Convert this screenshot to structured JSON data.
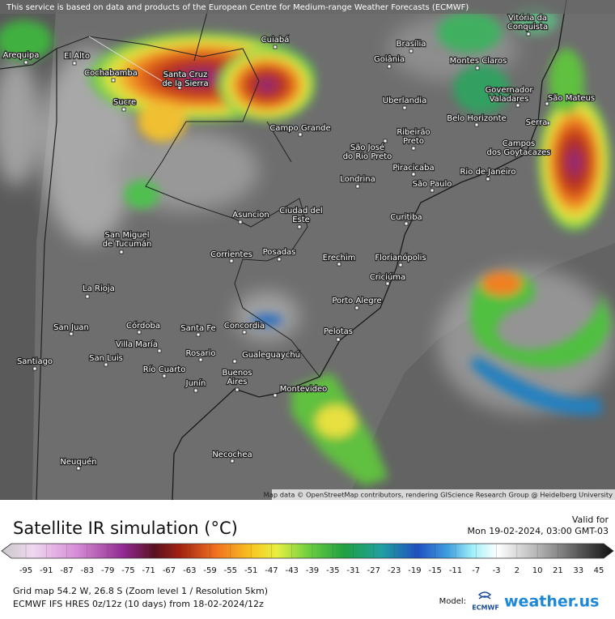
{
  "header": {
    "notice": "This service is based on data and products of the European Centre for Medium-range Weather Forecasts (ECMWF)"
  },
  "map": {
    "cities": [
      {
        "lines": [
          "Arequipa"
        ]
      },
      {
        "lines": [
          "El Alto"
        ]
      },
      {
        "lines": [
          "Cochabamba"
        ]
      },
      {
        "lines": [
          "Cuiabá"
        ]
      },
      {
        "lines": [
          "Brasília"
        ]
      },
      {
        "lines": [
          "Goiânia"
        ]
      },
      {
        "lines": [
          "Montes Claros"
        ]
      },
      {
        "lines": [
          "Vitória da",
          "Conquista"
        ]
      },
      {
        "lines": [
          "Santa Cruz",
          "de la Sierra"
        ]
      },
      {
        "lines": [
          "Sucre"
        ]
      },
      {
        "lines": [
          "Uberlandia"
        ]
      },
      {
        "lines": [
          "Governador",
          "Valadares"
        ]
      },
      {
        "lines": [
          "São Mateus"
        ]
      },
      {
        "lines": [
          "Belo Horizonte"
        ]
      },
      {
        "lines": [
          "Serra"
        ]
      },
      {
        "lines": [
          "Campo Grande"
        ]
      },
      {
        "lines": [
          "Ribeirão",
          "Preto"
        ]
      },
      {
        "lines": [
          "São José",
          "do Rio Preto"
        ]
      },
      {
        "lines": [
          "Campos",
          "dos Goytacazes"
        ]
      },
      {
        "lines": [
          "Piracicaba"
        ]
      },
      {
        "lines": [
          "Rio de Janeiro"
        ]
      },
      {
        "lines": [
          "Londrina"
        ]
      },
      {
        "lines": [
          "São Paulo"
        ]
      },
      {
        "lines": [
          "Ciudad del",
          "Este"
        ]
      },
      {
        "lines": [
          "Asuncion"
        ]
      },
      {
        "lines": [
          "Curitiba"
        ]
      },
      {
        "lines": [
          "San Miguel",
          "de Tucumán"
        ]
      },
      {
        "lines": [
          "Corrientes"
        ]
      },
      {
        "lines": [
          "Posadas"
        ]
      },
      {
        "lines": [
          "Erechim"
        ]
      },
      {
        "lines": [
          "Florianópolis"
        ]
      },
      {
        "lines": [
          "Criciúma"
        ]
      },
      {
        "lines": [
          "La Rioja"
        ]
      },
      {
        "lines": [
          "Porto Alegre"
        ]
      },
      {
        "lines": [
          "Córdoba"
        ]
      },
      {
        "lines": [
          "Concordia"
        ]
      },
      {
        "lines": [
          "San Juan"
        ]
      },
      {
        "lines": [
          "Santa Fe"
        ]
      },
      {
        "lines": [
          "Pelotas"
        ]
      },
      {
        "lines": [
          "Villa María"
        ]
      },
      {
        "lines": [
          "Rosario"
        ]
      },
      {
        "lines": [
          "Gualeguaychú"
        ]
      },
      {
        "lines": [
          "Santiago"
        ]
      },
      {
        "lines": [
          "San Luis"
        ]
      },
      {
        "lines": [
          "Río Cuarto"
        ]
      },
      {
        "lines": [
          "Buenos",
          "Aires"
        ]
      },
      {
        "lines": [
          "Montevideo"
        ]
      },
      {
        "lines": [
          "Junín"
        ]
      },
      {
        "lines": [
          "Necochea"
        ]
      },
      {
        "lines": [
          "Neuquén"
        ]
      }
    ],
    "attribution": "Map data © OpenStreetMap contributors, rendering GIScience Research Group @ Heidelberg University"
  },
  "legend": {
    "title": "Satellite IR simulation (°C)",
    "valid_label": "Valid for",
    "valid_time": "Mon 19-02-2024, 03:00 GMT-03",
    "ticks": [
      -95,
      -91,
      -87,
      -83,
      -79,
      -75,
      -71,
      -67,
      -63,
      -59,
      -55,
      -51,
      -47,
      -43,
      -39,
      -35,
      -31,
      -27,
      -23,
      -19,
      -15,
      -11,
      -7,
      -3,
      2,
      10,
      21,
      33,
      45
    ]
  },
  "footer": {
    "grid_info": "Grid map 54.2 W, 26.8 S (Zoom level 1 / Resolution 5km)",
    "model_run": "ECMWF IFS HRES 0z/12z (10 days) from 18-02-2024/12z",
    "model_label": "Model:",
    "model_logo": "ECMWF",
    "brand": "weather.us"
  }
}
